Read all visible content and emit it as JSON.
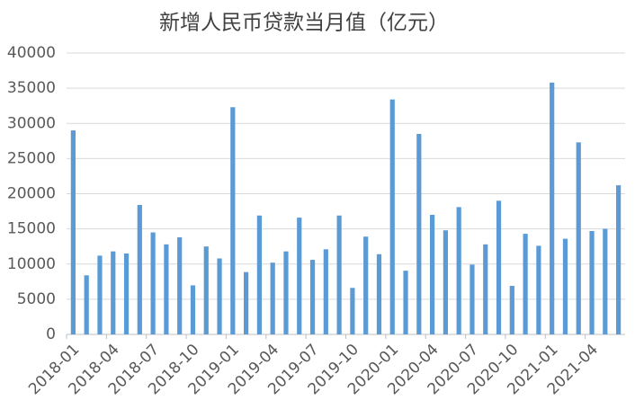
{
  "chart_data": {
    "type": "bar",
    "title": "新增人民币贷款当月值（亿元）",
    "categories": [
      "2018-01",
      null,
      null,
      "2018-04",
      null,
      null,
      "2018-07",
      null,
      null,
      "2018-10",
      null,
      null,
      "2019-01",
      null,
      null,
      "2019-04",
      null,
      null,
      "2019-07",
      null,
      null,
      "2019-10",
      null,
      null,
      "2020-01",
      null,
      null,
      "2020-04",
      null,
      null,
      "2020-07",
      null,
      null,
      "2020-10",
      null,
      null,
      "2021-01",
      null,
      null,
      "2021-04",
      null,
      null
    ],
    "values": [
      29000,
      8393,
      11200,
      11800,
      11500,
      18400,
      14500,
      12800,
      13800,
      6970,
      12500,
      10800,
      32300,
      8858,
      16900,
      10200,
      11800,
      16600,
      10600,
      12100,
      16900,
      6613,
      13900,
      11400,
      33400,
      9057,
      28500,
      17000,
      14800,
      18100,
      9927,
      12800,
      19000,
      6898,
      14300,
      12600,
      35800,
      13600,
      27300,
      14700,
      15000,
      21200
    ],
    "color": "#5b9bd5",
    "ylim": [
      0,
      40000
    ],
    "yticks": [
      0,
      5000,
      10000,
      15000,
      20000,
      25000,
      30000,
      35000,
      40000
    ],
    "grid": true
  }
}
